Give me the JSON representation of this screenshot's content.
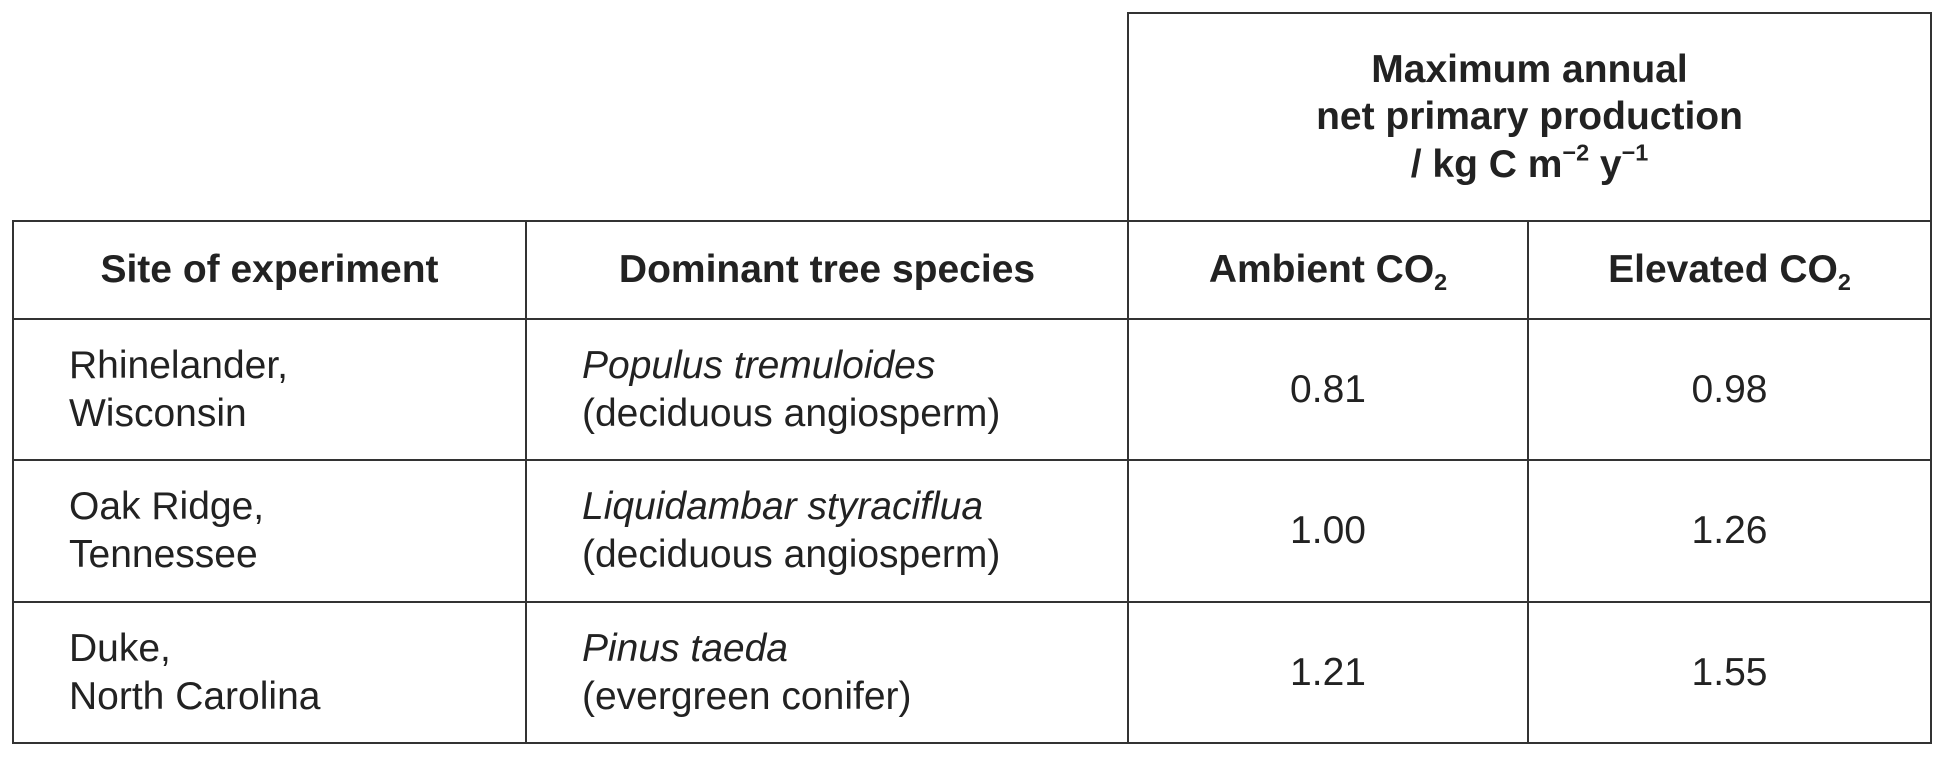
{
  "table": {
    "group_header": {
      "lines": [
        "Maximum annual",
        "net primary production"
      ],
      "unit": [
        "/ kg C m",
        "−2",
        " y",
        "−1"
      ]
    },
    "columns": [
      {
        "text": "Site of experiment"
      },
      {
        "text": "Dominant tree species"
      },
      {
        "text": "Ambient CO",
        "sub": "2"
      },
      {
        "text": "Elevated CO",
        "sub": "2"
      }
    ],
    "rows": [
      {
        "site": [
          "Rhinelander,",
          "Wisconsin"
        ],
        "species": "Populus tremuloides",
        "kind": "(deciduous angiosperm)",
        "ambient": "0.81",
        "elevated": "0.98"
      },
      {
        "site": [
          "Oak Ridge,",
          "Tennessee"
        ],
        "species": "Liquidambar styraciflua",
        "kind": "(deciduous angiosperm)",
        "ambient": "1.00",
        "elevated": "1.26"
      },
      {
        "site": [
          "Duke,",
          "North Carolina"
        ],
        "species": "Pinus taeda",
        "kind": "(evergreen conifer)",
        "ambient": "1.21",
        "elevated": "1.55"
      }
    ]
  }
}
